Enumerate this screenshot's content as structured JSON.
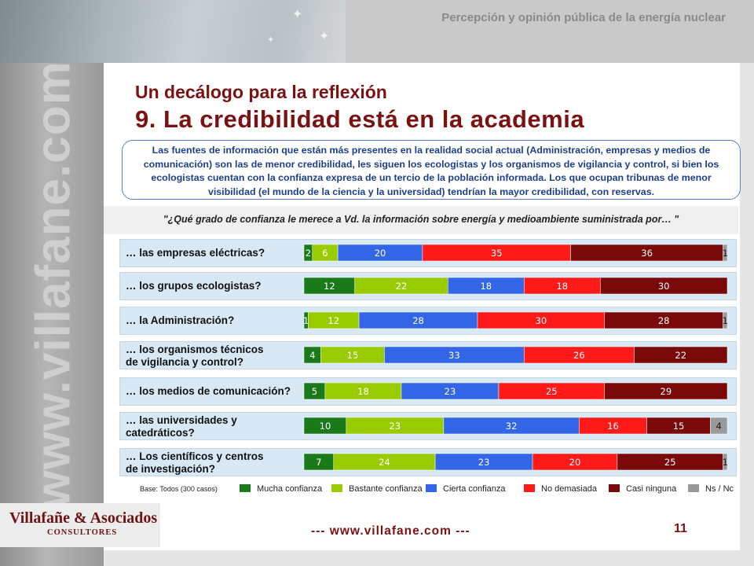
{
  "header": {
    "title": "Percepción y opinión pública de la energía nuclear"
  },
  "side_watermark": "www.villafane.com",
  "subtitle": "Un decálogo para la reflexión",
  "page_title": "9. La credibilidad está en la academia",
  "summary": "Las fuentes de información que están más presentes en la realidad social actual (Administración, empresas y medios de comunicación) son las de menor credibilidad, les siguen los ecologistas y los organismos de vigilancia y control, si bien los ecologistas cuentan con la confianza expresa de un tercio de la población informada. Los que ocupan tribunas de menor visibilidad (el mundo de la ciencia y la universidad) tendrían la mayor credibilidad, con reservas.",
  "question": "\"¿Qué grado de confianza le merece a Vd. la información sobre energía y medioambiente suministrada por… \"",
  "base_note": "Base: Todos (300 casos)",
  "chart_data": {
    "type": "bar",
    "orientation": "horizontal",
    "stacked": true,
    "unit": "%",
    "categories": [
      [
        "… las empresas eléctricas?"
      ],
      [
        "… los grupos ecologistas?"
      ],
      [
        "… la Administración?"
      ],
      [
        "… los organismos técnicos",
        "de vigilancia y control?"
      ],
      [
        "… los medios de comunicación?"
      ],
      [
        "… las universidades y",
        "catedráticos?"
      ],
      [
        "… Los científicos y centros",
        "de investigación?"
      ]
    ],
    "series": [
      {
        "name": "Mucha confianza",
        "color": "#1a7a1a",
        "values": [
          2,
          12,
          1,
          4,
          5,
          10,
          7
        ]
      },
      {
        "name": "Bastante confianza",
        "color": "#99cc00",
        "values": [
          6,
          22,
          12,
          15,
          18,
          23,
          24
        ]
      },
      {
        "name": "Cierta confianza",
        "color": "#3366e6",
        "values": [
          20,
          18,
          28,
          33,
          23,
          32,
          23
        ]
      },
      {
        "name": "No demasiada",
        "color": "#ff1a1a",
        "values": [
          35,
          18,
          30,
          26,
          25,
          16,
          20
        ]
      },
      {
        "name": "Casi ninguna",
        "color": "#7a0a0a",
        "values": [
          36,
          30,
          28,
          22,
          29,
          15,
          25
        ]
      },
      {
        "name": "Ns / Nc",
        "color": "#999999",
        "values": [
          1,
          0,
          1,
          0,
          0,
          4,
          1
        ]
      }
    ],
    "xlim": [
      0,
      100
    ],
    "legend": "bottom",
    "grid": false
  },
  "footer": {
    "company_name": "Villafañe & Asociados",
    "company_sub": "CONSULTORES",
    "url": "--- www.villafane.com ---",
    "page_number": "11"
  }
}
